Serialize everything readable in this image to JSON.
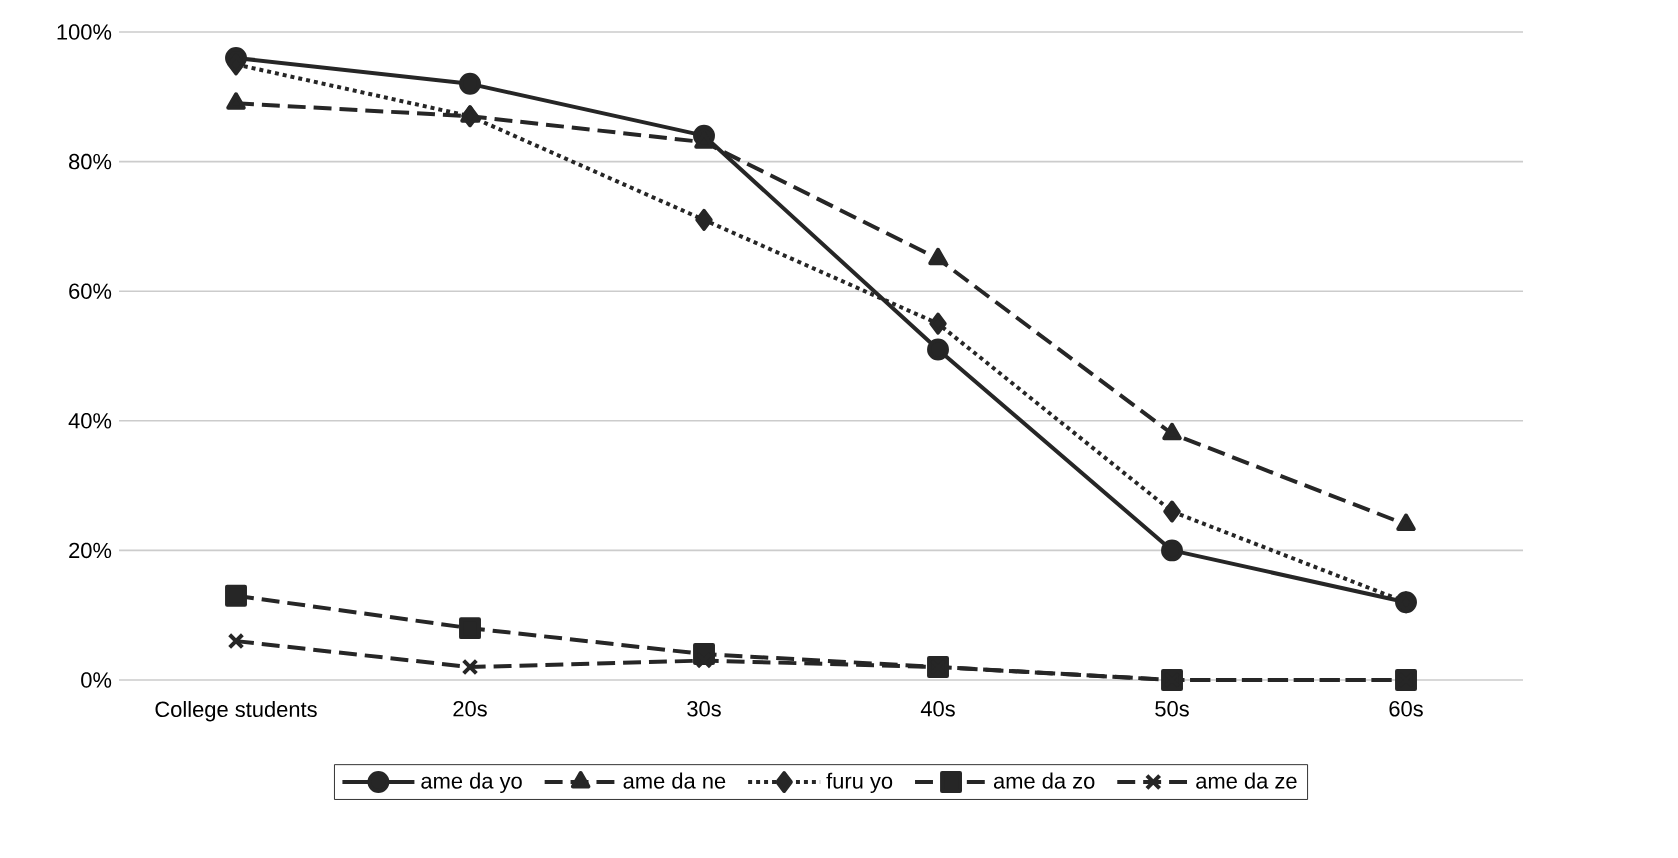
{
  "chart_data": {
    "type": "line",
    "categories": [
      "College students",
      "20s",
      "30s",
      "40s",
      "50s",
      "60s"
    ],
    "ylim": [
      0,
      100
    ],
    "yticks": [
      {
        "value": 0,
        "label": "0%"
      },
      {
        "value": 20,
        "label": "20%"
      },
      {
        "value": 40,
        "label": "40%"
      },
      {
        "value": 60,
        "label": "60%"
      },
      {
        "value": 80,
        "label": "80%"
      },
      {
        "value": 100,
        "label": "100%"
      }
    ],
    "grid": "y",
    "legend": "bottom",
    "series": [
      {
        "name": "ame da yo",
        "color": "#262626",
        "marker": "circle",
        "line_style": "solid",
        "values": [
          96,
          92,
          84,
          51,
          20,
          12
        ]
      },
      {
        "name": "ame da ne",
        "color": "#262626",
        "marker": "triangle",
        "line_style": "dashed",
        "values": [
          89,
          87,
          83,
          65,
          38,
          24
        ]
      },
      {
        "name": "furu yo",
        "color": "#262626",
        "marker": "diamond",
        "line_style": "dotted",
        "values": [
          95,
          87,
          71,
          55,
          26,
          12
        ]
      },
      {
        "name": "ame da zo",
        "color": "#262626",
        "marker": "square",
        "line_style": "dashed",
        "values": [
          13,
          8,
          4,
          2,
          0,
          0
        ]
      },
      {
        "name": "ame da ze",
        "color": "#262626",
        "marker": "cross",
        "line_style": "dashed",
        "values": [
          6,
          2,
          3,
          2,
          0,
          0
        ]
      }
    ]
  }
}
